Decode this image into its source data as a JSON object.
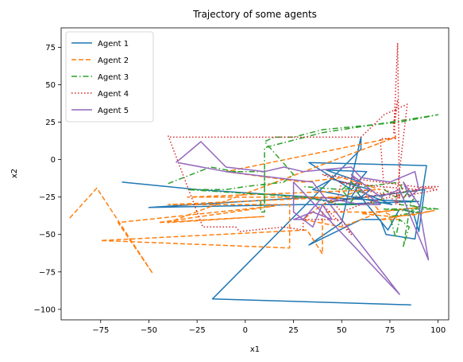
{
  "chart_data": {
    "type": "line",
    "title": "Trajectory of some agents",
    "xlabel": "x1",
    "ylabel": "x2",
    "xlim": [
      -95.5,
      105.5
    ],
    "ylim": [
      -107,
      88
    ],
    "xticks": [
      -75,
      -50,
      -25,
      0,
      25,
      50,
      75,
      100
    ],
    "xtick_labels": [
      "−75",
      "−50",
      "−25",
      "0",
      "25",
      "50",
      "75",
      "100"
    ],
    "yticks": [
      -100,
      -75,
      -50,
      -25,
      0,
      25,
      50,
      75
    ],
    "ytick_labels": [
      "−100",
      "−75",
      "−50",
      "−25",
      "0",
      "25",
      "50",
      "75"
    ],
    "grid": false,
    "legend_position": "top-left",
    "series": [
      {
        "name": "Agent 1",
        "color": "#1f77b4",
        "dash": "solid",
        "points": [
          [
            -64,
            -15
          ],
          [
            -25,
            -20
          ],
          [
            -2,
            -22
          ],
          [
            35,
            -25
          ],
          [
            -50,
            -32
          ],
          [
            30,
            -30
          ],
          [
            60,
            -30
          ],
          [
            40,
            -30
          ],
          [
            90,
            -28
          ],
          [
            30,
            -25
          ],
          [
            45,
            -28
          ],
          [
            93,
            -20
          ],
          [
            90,
            -48
          ],
          [
            87,
            -35
          ],
          [
            80,
            -33
          ],
          [
            74,
            -47
          ],
          [
            60,
            -25
          ],
          [
            57,
            -20
          ],
          [
            76,
            -30
          ],
          [
            35,
            -20
          ],
          [
            45,
            -13
          ],
          [
            65,
            -20
          ],
          [
            60,
            -25
          ],
          [
            55,
            -25
          ],
          [
            60,
            -15
          ],
          [
            42,
            -7
          ],
          [
            63,
            -8
          ],
          [
            55,
            -20
          ],
          [
            33,
            -2
          ],
          [
            94,
            -4
          ],
          [
            88,
            -53
          ],
          [
            73,
            -50
          ],
          [
            70,
            -40
          ],
          [
            60,
            -40
          ],
          [
            33,
            -57
          ],
          [
            50,
            -42
          ],
          [
            60,
            15
          ],
          [
            60,
            7
          ],
          [
            -17,
            -93
          ],
          [
            86,
            -97
          ]
        ]
      },
      {
        "name": "Agent 2",
        "color": "#ff7f0e",
        "dash": "6,3",
        "points": [
          [
            -91,
            -39
          ],
          [
            -77,
            -19
          ],
          [
            -48,
            -76
          ],
          [
            -66,
            -42
          ],
          [
            15,
            -31
          ],
          [
            -45,
            -42
          ],
          [
            10,
            -38
          ],
          [
            -40,
            -42
          ],
          [
            78,
            15
          ],
          [
            -10,
            -8
          ],
          [
            30,
            -15
          ],
          [
            50,
            -12
          ],
          [
            70,
            -20
          ],
          [
            -30,
            -25
          ],
          [
            50,
            -25
          ],
          [
            -40,
            -30
          ],
          [
            23,
            -30
          ],
          [
            23,
            -59
          ],
          [
            -75,
            -54
          ],
          [
            32,
            -47
          ],
          [
            40,
            -63
          ],
          [
            40,
            -35
          ],
          [
            70,
            -35
          ],
          [
            60,
            -20
          ],
          [
            40,
            -30
          ],
          [
            30,
            -40
          ],
          [
            50,
            -45
          ],
          [
            70,
            -35
          ],
          [
            90,
            -32
          ],
          [
            60,
            -36
          ],
          [
            75,
            -38
          ],
          [
            87,
            -37
          ],
          [
            98,
            -34
          ],
          [
            70,
            -40
          ],
          [
            80,
            -40
          ],
          [
            72,
            -35
          ]
        ]
      },
      {
        "name": "Agent 3",
        "color": "#2ca02c",
        "dash": "7,3,1.5,3",
        "points": [
          [
            -40,
            -16
          ],
          [
            -18,
            -5
          ],
          [
            -5,
            -8
          ],
          [
            -10,
            -8
          ],
          [
            10,
            -8
          ],
          [
            10,
            -5
          ],
          [
            10,
            -28
          ],
          [
            8,
            -28
          ],
          [
            8,
            -35
          ],
          [
            10,
            -35
          ],
          [
            10,
            -12
          ],
          [
            10,
            8
          ],
          [
            40,
            18
          ],
          [
            60,
            22
          ],
          [
            70,
            24
          ],
          [
            100,
            30
          ],
          [
            80,
            25
          ],
          [
            40,
            20
          ],
          [
            25,
            15
          ],
          [
            15,
            15
          ],
          [
            10,
            12
          ],
          [
            25,
            -10
          ],
          [
            20,
            -15
          ],
          [
            0,
            -18
          ],
          [
            -10,
            -20
          ],
          [
            -30,
            -20
          ],
          [
            30,
            -25
          ],
          [
            50,
            -30
          ],
          [
            70,
            -30
          ],
          [
            72,
            -20
          ],
          [
            78,
            -25
          ],
          [
            85,
            -20
          ],
          [
            80,
            -30
          ],
          [
            100,
            -33
          ],
          [
            72,
            -33
          ],
          [
            90,
            -35
          ],
          [
            75,
            -38
          ],
          [
            78,
            -52
          ],
          [
            80,
            -40
          ],
          [
            85,
            -45
          ],
          [
            82,
            -58
          ],
          [
            85,
            -35
          ],
          [
            90,
            -32
          ],
          [
            85,
            -30
          ],
          [
            88,
            -25
          ],
          [
            82,
            -22
          ],
          [
            80,
            -15
          ],
          [
            50,
            -20
          ],
          [
            55,
            -28
          ],
          [
            60,
            -20
          ],
          [
            55,
            -15
          ],
          [
            50,
            -20
          ],
          [
            30,
            -18
          ]
        ]
      },
      {
        "name": "Agent 4",
        "color": "#d62728",
        "dash": "1.5,2.5",
        "points": [
          [
            -40,
            16
          ],
          [
            -22,
            -45
          ],
          [
            -5,
            -45
          ],
          [
            -3,
            -48
          ],
          [
            20,
            -45
          ],
          [
            30,
            -47
          ],
          [
            30,
            -40
          ],
          [
            50,
            -40
          ],
          [
            55,
            -50
          ],
          [
            40,
            -30
          ],
          [
            48,
            -25
          ],
          [
            50,
            -15
          ],
          [
            60,
            -20
          ],
          [
            80,
            -25
          ],
          [
            100,
            -20
          ],
          [
            40,
            -10
          ],
          [
            50,
            -15
          ],
          [
            70,
            -18
          ],
          [
            90,
            -20
          ],
          [
            80,
            -22
          ],
          [
            60,
            -25
          ],
          [
            45,
            -28
          ],
          [
            50,
            -35
          ],
          [
            60,
            -30
          ],
          [
            75,
            -25
          ],
          [
            80,
            -30
          ],
          [
            79,
            78
          ],
          [
            77,
            18
          ],
          [
            79,
            40
          ],
          [
            77,
            25
          ],
          [
            78,
            14
          ],
          [
            70,
            14
          ],
          [
            72,
            -20
          ],
          [
            82,
            -25
          ],
          [
            92,
            -18
          ],
          [
            100,
            -18
          ],
          [
            80,
            -22
          ],
          [
            78,
            -30
          ],
          [
            84,
            37
          ],
          [
            72,
            30
          ],
          [
            60,
            15
          ],
          [
            -40,
            15
          ]
        ]
      },
      {
        "name": "Agent 5",
        "color": "#9467bd",
        "dash": "solid",
        "points": [
          [
            -36,
            -2
          ],
          [
            -23,
            12
          ],
          [
            -10,
            -5
          ],
          [
            10,
            -8
          ],
          [
            20,
            -5
          ],
          [
            30,
            -8
          ],
          [
            55,
            -5
          ],
          [
            60,
            -12
          ],
          [
            75,
            -15
          ],
          [
            88,
            -8
          ],
          [
            90,
            -20
          ],
          [
            85,
            -25
          ],
          [
            82,
            -15
          ],
          [
            90,
            -30
          ],
          [
            95,
            -67
          ],
          [
            80,
            -20
          ],
          [
            70,
            -25
          ],
          [
            60,
            -15
          ],
          [
            55,
            -10
          ],
          [
            60,
            -20
          ],
          [
            70,
            -30
          ],
          [
            60,
            -30
          ],
          [
            40,
            -25
          ],
          [
            30,
            -40
          ],
          [
            25,
            -40
          ],
          [
            35,
            -35
          ],
          [
            45,
            -40
          ],
          [
            40,
            -30
          ],
          [
            35,
            -45
          ],
          [
            25,
            -35
          ],
          [
            25,
            -15
          ],
          [
            80,
            -90
          ],
          [
            35,
            -15
          ],
          [
            -10,
            -8
          ],
          [
            -35,
            -2
          ]
        ]
      }
    ]
  }
}
